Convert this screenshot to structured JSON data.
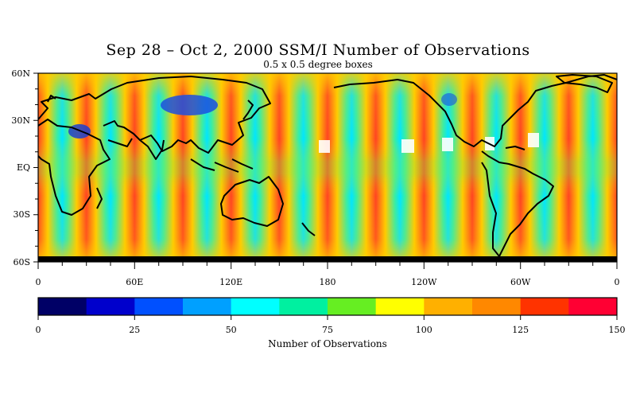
{
  "title": "Sep 28 – Oct 2, 2000 SSM/I Number of Observations",
  "subtitle": "0.5 x 0.5 degree boxes",
  "map": {
    "lat_labels": [
      "60N",
      "30N",
      "EQ",
      "30S",
      "60S"
    ],
    "lon_labels": [
      "0",
      "60E",
      "120E",
      "180",
      "120W",
      "60W",
      "0"
    ]
  },
  "colorbar": {
    "title": "Number of Observations",
    "tick_labels": [
      "0",
      "25",
      "50",
      "75",
      "100",
      "125",
      "150"
    ],
    "colors": [
      "#000066",
      "#0000cc",
      "#0050ff",
      "#00a0ff",
      "#00ffff",
      "#00f0a0",
      "#66ee22",
      "#ffff00",
      "#ffb000",
      "#ff8800",
      "#ff3300",
      "#ff0033"
    ],
    "range": [
      0,
      150
    ]
  },
  "chart_data": {
    "type": "heatmap",
    "title": "Sep 28 – Oct 2, 2000 SSM/I Number of Observations",
    "subtitle": "0.5 x 0.5 degree boxes",
    "x_extent_deg": [
      0,
      360
    ],
    "y_extent_deg": [
      -60,
      60
    ],
    "x_ticks": [
      "0",
      "60E",
      "120E",
      "180",
      "120W",
      "60W",
      "0"
    ],
    "y_ticks": [
      "60N",
      "30N",
      "EQ",
      "30S",
      "60S"
    ],
    "value_range": [
      0,
      150
    ],
    "colorbar_label": "Number of Observations"
  }
}
